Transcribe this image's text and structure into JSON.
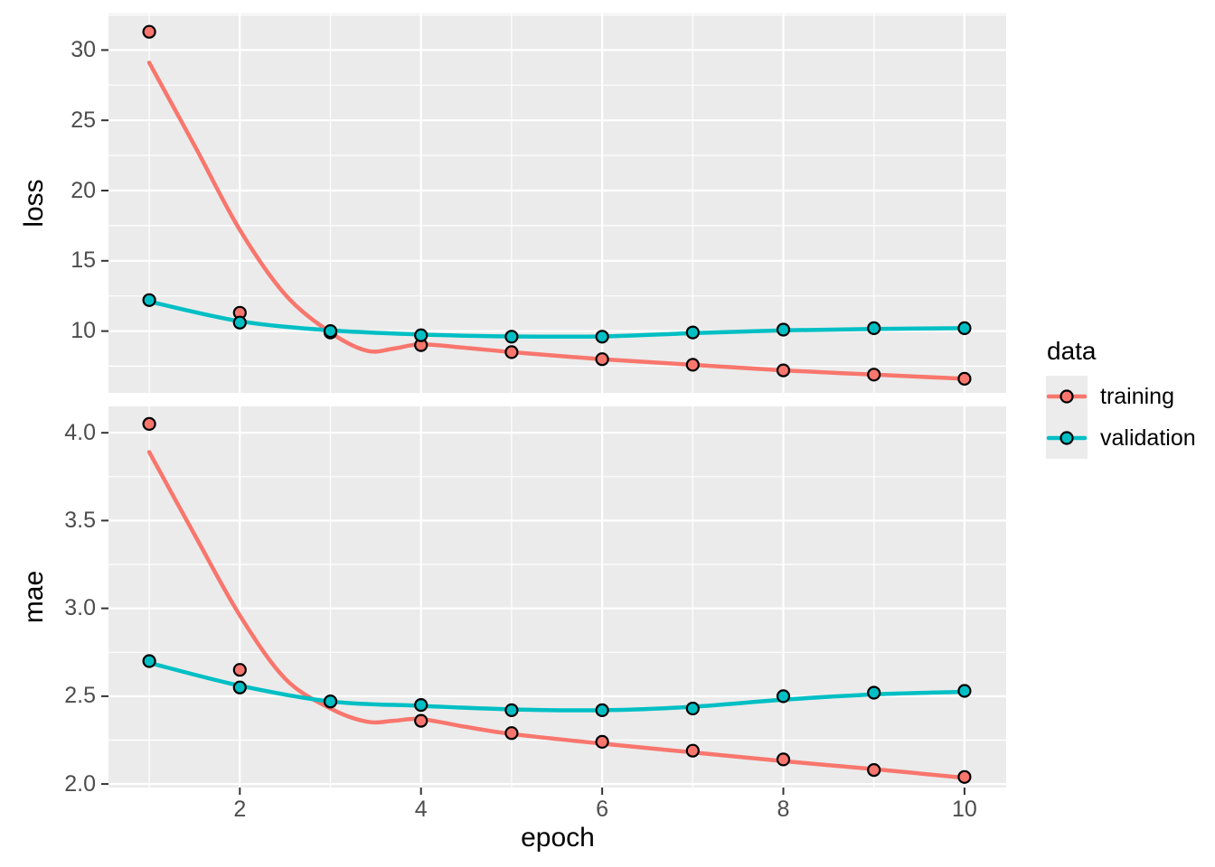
{
  "figure": {
    "background": "#FFFFFF",
    "panel_background": "#EBEBEB",
    "grid_color": "#FFFFFF",
    "tick_color": "#333333",
    "tick_label_color": "#4D4D4D",
    "point_outline_color": "#000000",
    "xlabel": "epoch",
    "x_tick_values": [
      2,
      4,
      6,
      8,
      10
    ],
    "x_tick_labels": [
      "2",
      "4",
      "6",
      "8",
      "10"
    ],
    "legend": {
      "title": "data",
      "position": "right",
      "items": [
        {
          "label": "training",
          "color": "#F8766D"
        },
        {
          "label": "validation",
          "color": "#00BFC4"
        }
      ]
    }
  },
  "chart_data": [
    {
      "type": "scatter",
      "panel": "loss",
      "ylabel": "loss",
      "xlabel": "epoch",
      "grid": true,
      "x": [
        1,
        2,
        3,
        4,
        5,
        6,
        7,
        8,
        9,
        10
      ],
      "xlim": [
        0.55,
        10.46
      ],
      "ylim": [
        5.6,
        32.6
      ],
      "y_tick_values": [
        10,
        15,
        20,
        25,
        30
      ],
      "y_tick_labels": [
        "10",
        "15",
        "20",
        "25",
        "30"
      ],
      "series": [
        {
          "name": "training",
          "color": "#F8766D",
          "values": [
            31.3,
            11.3,
            9.9,
            9.0,
            8.5,
            8.0,
            7.6,
            7.2,
            6.9,
            6.6
          ],
          "smooth": [
            [
              1,
              29.1
            ],
            [
              1.5,
              23.2
            ],
            [
              2,
              17.2
            ],
            [
              2.5,
              12.6
            ],
            [
              3,
              9.9
            ],
            [
              3.4,
              8.6
            ],
            [
              3.7,
              8.75
            ],
            [
              4,
              9.05
            ],
            [
              4.5,
              8.8
            ],
            [
              5,
              8.5
            ],
            [
              6,
              8.0
            ],
            [
              7,
              7.6
            ],
            [
              8,
              7.2
            ],
            [
              9,
              6.9
            ],
            [
              10,
              6.6
            ]
          ]
        },
        {
          "name": "validation",
          "color": "#00BFC4",
          "values": [
            12.2,
            10.6,
            10.0,
            9.7,
            9.6,
            9.6,
            9.9,
            10.1,
            10.2,
            10.2
          ],
          "smooth": [
            [
              1,
              12.1
            ],
            [
              2,
              10.7
            ],
            [
              3,
              10.05
            ],
            [
              4,
              9.75
            ],
            [
              5,
              9.62
            ],
            [
              6,
              9.62
            ],
            [
              7,
              9.85
            ],
            [
              8,
              10.05
            ],
            [
              9,
              10.15
            ],
            [
              10,
              10.2
            ]
          ]
        }
      ]
    },
    {
      "type": "scatter",
      "panel": "mae",
      "ylabel": "mae",
      "xlabel": "epoch",
      "grid": true,
      "x": [
        1,
        2,
        3,
        4,
        5,
        6,
        7,
        8,
        9,
        10
      ],
      "xlim": [
        0.55,
        10.46
      ],
      "ylim": [
        1.98,
        4.15
      ],
      "y_tick_values": [
        2.0,
        2.5,
        3.0,
        3.5,
        4.0
      ],
      "y_tick_labels": [
        "2.0",
        "2.5",
        "3.0",
        "3.5",
        "4.0"
      ],
      "series": [
        {
          "name": "training",
          "color": "#F8766D",
          "values": [
            4.05,
            2.65,
            2.47,
            2.36,
            2.29,
            2.24,
            2.19,
            2.14,
            2.08,
            2.04
          ],
          "smooth": [
            [
              1,
              3.89
            ],
            [
              1.5,
              3.42
            ],
            [
              2,
              2.96
            ],
            [
              2.5,
              2.6
            ],
            [
              3,
              2.43
            ],
            [
              3.4,
              2.355
            ],
            [
              3.7,
              2.36
            ],
            [
              4,
              2.37
            ],
            [
              4.5,
              2.325
            ],
            [
              5,
              2.285
            ],
            [
              6,
              2.23
            ],
            [
              7,
              2.18
            ],
            [
              8,
              2.13
            ],
            [
              9,
              2.085
            ],
            [
              10,
              2.035
            ]
          ]
        },
        {
          "name": "validation",
          "color": "#00BFC4",
          "values": [
            2.7,
            2.55,
            2.47,
            2.45,
            2.42,
            2.42,
            2.43,
            2.5,
            2.52,
            2.53
          ],
          "smooth": [
            [
              1,
              2.69
            ],
            [
              2,
              2.56
            ],
            [
              3,
              2.47
            ],
            [
              4,
              2.445
            ],
            [
              5,
              2.425
            ],
            [
              6,
              2.42
            ],
            [
              7,
              2.44
            ],
            [
              8,
              2.48
            ],
            [
              9,
              2.51
            ],
            [
              10,
              2.525
            ]
          ]
        }
      ]
    }
  ]
}
